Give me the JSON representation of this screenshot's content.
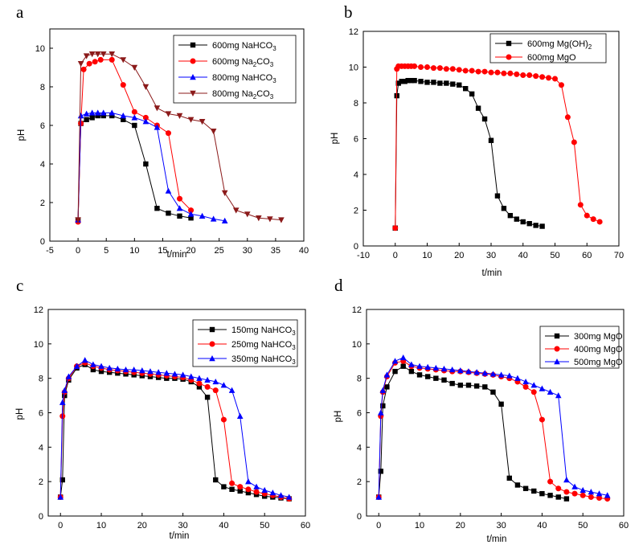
{
  "chart_data": [
    {
      "panel": "a",
      "type": "line",
      "xlabel": "t/min",
      "ylabel": "pH",
      "xlim": [
        -5,
        40
      ],
      "ylim": [
        0,
        11
      ],
      "xticks": [
        -5,
        0,
        5,
        10,
        15,
        20,
        25,
        30,
        35,
        40
      ],
      "yticks": [
        0,
        2,
        4,
        6,
        8,
        10
      ],
      "legend_position": "top-right",
      "series": [
        {
          "name": "600mg NaHCO3",
          "marker": "square",
          "color": "#000000",
          "legend_parts": [
            {
              "t": "600mg NaHCO"
            },
            {
              "t": "3",
              "sub": true
            }
          ],
          "x": [
            0,
            0.5,
            1.5,
            2.5,
            3.5,
            4.5,
            6,
            8,
            10,
            12,
            14,
            16,
            18,
            20
          ],
          "y": [
            1.1,
            6.1,
            6.3,
            6.4,
            6.5,
            6.5,
            6.5,
            6.3,
            6.0,
            4.0,
            1.7,
            1.45,
            1.3,
            1.2
          ]
        },
        {
          "name": "600mg Na2CO3",
          "marker": "circle",
          "color": "#ff0000",
          "legend_parts": [
            {
              "t": "600mg Na"
            },
            {
              "t": "2",
              "sub": true
            },
            {
              "t": "CO"
            },
            {
              "t": "3",
              "sub": true
            }
          ],
          "x": [
            0,
            0.5,
            1,
            2,
            3,
            4,
            6,
            8,
            10,
            12,
            14,
            16,
            18,
            20
          ],
          "y": [
            1.0,
            6.1,
            8.9,
            9.2,
            9.3,
            9.4,
            9.4,
            8.1,
            6.7,
            6.4,
            6.0,
            5.6,
            2.2,
            1.6
          ]
        },
        {
          "name": "800mg NaHCO3",
          "marker": "triangle-up",
          "color": "#0000ff",
          "legend_parts": [
            {
              "t": "800mg NaHCO"
            },
            {
              "t": "3",
              "sub": true
            }
          ],
          "x": [
            0,
            0.5,
            1.5,
            2.5,
            3.5,
            4.5,
            6,
            8,
            10,
            12,
            14,
            16,
            18,
            20,
            22,
            24,
            26
          ],
          "y": [
            1.1,
            6.5,
            6.6,
            6.65,
            6.65,
            6.65,
            6.65,
            6.5,
            6.4,
            6.2,
            5.9,
            2.6,
            1.7,
            1.4,
            1.3,
            1.15,
            1.05
          ]
        },
        {
          "name": "800mg Na2CO3",
          "marker": "triangle-down",
          "color": "#8b1a1a",
          "legend_parts": [
            {
              "t": "800mg Na"
            },
            {
              "t": "2",
              "sub": true
            },
            {
              "t": "CO"
            },
            {
              "t": "3",
              "sub": true
            }
          ],
          "x": [
            0,
            0.5,
            1.5,
            2.5,
            3.5,
            4.5,
            6,
            8,
            10,
            12,
            14,
            16,
            18,
            20,
            22,
            24,
            26,
            28,
            30,
            32,
            34,
            36
          ],
          "y": [
            1.1,
            9.2,
            9.6,
            9.7,
            9.7,
            9.7,
            9.7,
            9.4,
            9.0,
            8.0,
            6.9,
            6.6,
            6.5,
            6.3,
            6.2,
            5.7,
            2.5,
            1.6,
            1.4,
            1.2,
            1.15,
            1.1
          ]
        }
      ]
    },
    {
      "panel": "b",
      "type": "line",
      "xlabel": "t/min",
      "ylabel": "pH",
      "xlim": [
        -10,
        70
      ],
      "ylim": [
        0,
        12
      ],
      "xticks": [
        -10,
        0,
        10,
        20,
        30,
        40,
        50,
        60,
        70
      ],
      "yticks": [
        0,
        2,
        4,
        6,
        8,
        10,
        12
      ],
      "legend_position": "top-right",
      "series": [
        {
          "name": "600mg Mg(OH)2",
          "marker": "square",
          "color": "#000000",
          "legend_parts": [
            {
              "t": "600mg Mg(OH)"
            },
            {
              "t": "2",
              "sub": true
            }
          ],
          "x": [
            0,
            0.5,
            1,
            2,
            3,
            4,
            5,
            6,
            8,
            10,
            12,
            14,
            16,
            18,
            20,
            22,
            24,
            26,
            28,
            30,
            32,
            34,
            36,
            38,
            40,
            42,
            44,
            46
          ],
          "y": [
            1.0,
            8.4,
            9.1,
            9.2,
            9.2,
            9.25,
            9.25,
            9.25,
            9.2,
            9.15,
            9.15,
            9.1,
            9.1,
            9.05,
            9.0,
            8.8,
            8.5,
            7.7,
            7.1,
            5.9,
            2.8,
            2.1,
            1.7,
            1.5,
            1.35,
            1.25,
            1.15,
            1.1
          ]
        },
        {
          "name": "600mg MgO",
          "marker": "circle",
          "color": "#ff0000",
          "legend_parts": [
            {
              "t": "600mg MgO"
            }
          ],
          "x": [
            0,
            0.5,
            1,
            2,
            3,
            4,
            5,
            6,
            8,
            10,
            12,
            14,
            16,
            18,
            20,
            22,
            24,
            26,
            28,
            30,
            32,
            34,
            36,
            38,
            40,
            42,
            44,
            46,
            48,
            50,
            52,
            54,
            56,
            58,
            60,
            62,
            64
          ],
          "y": [
            1.0,
            9.9,
            10.05,
            10.05,
            10.05,
            10.05,
            10.05,
            10.05,
            10.0,
            10.0,
            9.95,
            9.95,
            9.9,
            9.9,
            9.85,
            9.8,
            9.8,
            9.75,
            9.75,
            9.7,
            9.7,
            9.65,
            9.65,
            9.6,
            9.55,
            9.55,
            9.5,
            9.45,
            9.4,
            9.35,
            9.0,
            7.2,
            5.8,
            2.3,
            1.7,
            1.5,
            1.35
          ]
        }
      ]
    },
    {
      "panel": "c",
      "type": "line",
      "xlabel": "t/min",
      "ylabel": "pH",
      "xlim": [
        -3,
        60
      ],
      "ylim": [
        0,
        12
      ],
      "xticks": [
        0,
        10,
        20,
        30,
        40,
        50,
        60
      ],
      "yticks": [
        0,
        2,
        4,
        6,
        8,
        10,
        12
      ],
      "legend_position": "top-right",
      "series": [
        {
          "name": "150mg NaHCO3",
          "marker": "square",
          "color": "#000000",
          "legend_parts": [
            {
              "t": "150mg NaHCO"
            },
            {
              "t": "3",
              "sub": true
            }
          ],
          "x": [
            0,
            0.5,
            1,
            2,
            4,
            6,
            8,
            10,
            12,
            14,
            16,
            18,
            20,
            22,
            24,
            26,
            28,
            30,
            32,
            34,
            36,
            38,
            40,
            42,
            44,
            46,
            48,
            50,
            52,
            54,
            56
          ],
          "y": [
            1.1,
            2.1,
            7.0,
            7.9,
            8.6,
            8.8,
            8.5,
            8.4,
            8.35,
            8.3,
            8.25,
            8.2,
            8.15,
            8.1,
            8.05,
            8.0,
            8.0,
            7.95,
            7.8,
            7.5,
            6.9,
            2.1,
            1.7,
            1.55,
            1.45,
            1.35,
            1.25,
            1.15,
            1.1,
            1.05,
            1.0
          ]
        },
        {
          "name": "250mg NaHCO3",
          "marker": "circle",
          "color": "#ff0000",
          "legend_parts": [
            {
              "t": "250mg NaHCO"
            },
            {
              "t": "3",
              "sub": true
            }
          ],
          "x": [
            0,
            0.5,
            1,
            2,
            4,
            6,
            8,
            10,
            12,
            14,
            16,
            18,
            20,
            22,
            24,
            26,
            28,
            30,
            32,
            34,
            36,
            38,
            40,
            42,
            44,
            46,
            48,
            50,
            52,
            54,
            56
          ],
          "y": [
            1.1,
            5.8,
            7.2,
            8.0,
            8.7,
            8.9,
            8.7,
            8.6,
            8.5,
            8.45,
            8.4,
            8.35,
            8.3,
            8.25,
            8.2,
            8.15,
            8.1,
            8.05,
            7.9,
            7.7,
            7.5,
            7.3,
            5.6,
            1.9,
            1.7,
            1.55,
            1.4,
            1.3,
            1.2,
            1.1,
            1.0
          ]
        },
        {
          "name": "350mg NaHCO3",
          "marker": "triangle-up",
          "color": "#0000ff",
          "legend_parts": [
            {
              "t": "350mg NaHCO"
            },
            {
              "t": "3",
              "sub": true
            }
          ],
          "x": [
            0,
            0.5,
            1,
            2,
            4,
            6,
            8,
            10,
            12,
            14,
            16,
            18,
            20,
            22,
            24,
            26,
            28,
            30,
            32,
            34,
            36,
            38,
            40,
            42,
            44,
            46,
            48,
            50,
            52,
            54,
            56
          ],
          "y": [
            1.1,
            6.6,
            7.3,
            8.1,
            8.7,
            9.05,
            8.8,
            8.7,
            8.6,
            8.55,
            8.5,
            8.5,
            8.45,
            8.4,
            8.35,
            8.3,
            8.25,
            8.2,
            8.1,
            8.0,
            7.9,
            7.8,
            7.6,
            7.3,
            5.8,
            2.0,
            1.7,
            1.5,
            1.35,
            1.2,
            1.1
          ]
        }
      ]
    },
    {
      "panel": "d",
      "type": "line",
      "xlabel": "t/min",
      "ylabel": "pH",
      "xlim": [
        -3,
        60
      ],
      "ylim": [
        0,
        12
      ],
      "xticks": [
        0,
        10,
        20,
        30,
        40,
        50,
        60
      ],
      "yticks": [
        0,
        2,
        4,
        6,
        8,
        10,
        12
      ],
      "legend_position": "top-right",
      "series": [
        {
          "name": "300mg MgO",
          "marker": "square",
          "color": "#000000",
          "legend_parts": [
            {
              "t": "300mg MgO"
            }
          ],
          "x": [
            0,
            0.5,
            1,
            2,
            4,
            6,
            8,
            10,
            12,
            14,
            16,
            18,
            20,
            22,
            24,
            26,
            28,
            30,
            32,
            34,
            36,
            38,
            40,
            42,
            44,
            46
          ],
          "y": [
            1.1,
            2.6,
            6.4,
            7.5,
            8.4,
            8.7,
            8.4,
            8.2,
            8.1,
            8.0,
            7.9,
            7.7,
            7.6,
            7.6,
            7.55,
            7.5,
            7.2,
            6.5,
            2.2,
            1.8,
            1.6,
            1.45,
            1.3,
            1.2,
            1.1,
            1.0
          ]
        },
        {
          "name": "400mg MgO",
          "marker": "circle",
          "color": "#ff0000",
          "legend_parts": [
            {
              "t": "400mg MgO"
            }
          ],
          "x": [
            0,
            0.5,
            1,
            2,
            4,
            6,
            8,
            10,
            12,
            14,
            16,
            18,
            20,
            22,
            24,
            26,
            28,
            30,
            32,
            34,
            36,
            38,
            40,
            42,
            44,
            46,
            48,
            50,
            52,
            54,
            56
          ],
          "y": [
            1.1,
            5.8,
            7.2,
            8.1,
            8.9,
            9.0,
            8.7,
            8.6,
            8.55,
            8.5,
            8.45,
            8.4,
            8.4,
            8.35,
            8.3,
            8.25,
            8.2,
            8.1,
            8.0,
            7.8,
            7.5,
            7.2,
            5.6,
            2.0,
            1.6,
            1.4,
            1.3,
            1.2,
            1.1,
            1.05,
            1.0
          ]
        },
        {
          "name": "500mg MgO",
          "marker": "triangle-up",
          "color": "#0000ff",
          "legend_parts": [
            {
              "t": "500mg MgO"
            }
          ],
          "x": [
            0,
            0.5,
            1,
            2,
            4,
            6,
            8,
            10,
            12,
            14,
            16,
            18,
            20,
            22,
            24,
            26,
            28,
            30,
            32,
            34,
            36,
            38,
            40,
            42,
            44,
            46,
            48,
            50,
            52,
            54,
            56
          ],
          "y": [
            1.1,
            6.0,
            7.3,
            8.2,
            9.0,
            9.2,
            8.8,
            8.7,
            8.65,
            8.6,
            8.55,
            8.5,
            8.45,
            8.4,
            8.35,
            8.3,
            8.25,
            8.2,
            8.15,
            8.0,
            7.8,
            7.6,
            7.4,
            7.2,
            7.0,
            2.1,
            1.7,
            1.5,
            1.4,
            1.3,
            1.2
          ]
        }
      ]
    }
  ]
}
